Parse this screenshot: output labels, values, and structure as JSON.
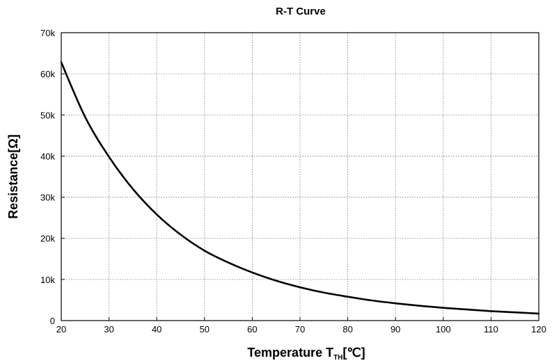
{
  "chart_data": {
    "type": "line",
    "title": "R-T Curve",
    "xlabel": "Temperature T",
    "xlabel_subscript": "TH",
    "xlabel_unit": "[℃]",
    "ylabel": "Resistance[Ω]",
    "xlim": [
      20,
      120
    ],
    "ylim": [
      0,
      70000
    ],
    "grid": true,
    "x_ticks": [
      {
        "value": 20,
        "label": "20"
      },
      {
        "value": 30,
        "label": "30"
      },
      {
        "value": 40,
        "label": "40"
      },
      {
        "value": 50,
        "label": "50"
      },
      {
        "value": 60,
        "label": "60"
      },
      {
        "value": 70,
        "label": "70"
      },
      {
        "value": 80,
        "label": "80"
      },
      {
        "value": 90,
        "label": "90"
      },
      {
        "value": 100,
        "label": "100"
      },
      {
        "value": 110,
        "label": "110"
      },
      {
        "value": 120,
        "label": "120"
      }
    ],
    "y_ticks": [
      {
        "value": 0,
        "label": "0"
      },
      {
        "value": 10000,
        "label": "10k"
      },
      {
        "value": 20000,
        "label": "20k"
      },
      {
        "value": 30000,
        "label": "30k"
      },
      {
        "value": 40000,
        "label": "40k"
      },
      {
        "value": 50000,
        "label": "50k"
      },
      {
        "value": 60000,
        "label": "60k"
      },
      {
        "value": 70000,
        "label": "70k"
      }
    ],
    "series": [
      {
        "x": [
          20,
          25,
          30,
          35,
          40,
          45,
          50,
          55,
          60,
          65,
          70,
          75,
          80,
          85,
          90,
          95,
          100,
          105,
          110,
          115,
          120
        ],
        "y": [
          62800,
          49500,
          39800,
          32000,
          25800,
          20900,
          17000,
          14100,
          11700,
          9700,
          8100,
          6800,
          5800,
          4900,
          4200,
          3600,
          3100,
          2700,
          2300,
          2000,
          1700
        ],
        "color": "#000000"
      }
    ]
  }
}
